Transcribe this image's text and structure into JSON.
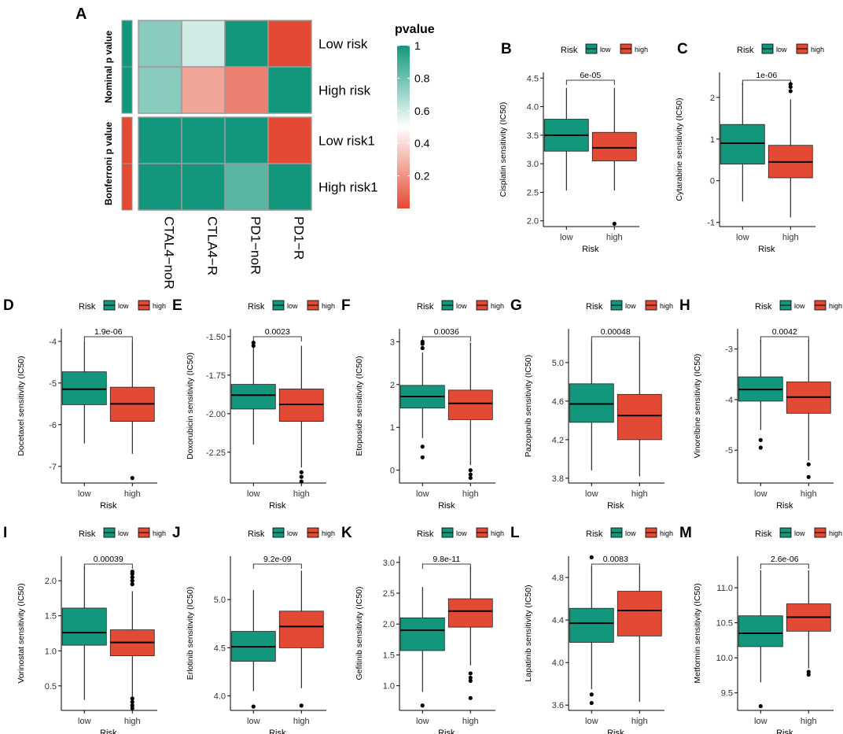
{
  "colors": {
    "low": "#12977c",
    "high": "#e34a33",
    "mid": "#ffffff",
    "grid_border": "#9b9b9b"
  },
  "heatmap": {
    "panel_letter": "A",
    "legend_title": "pvalue",
    "legend_ticks": [
      "1",
      "0.8",
      "0.6",
      "0.4",
      "0.2"
    ],
    "legend_tick_values": [
      1,
      0.8,
      0.6,
      0.4,
      0.2
    ],
    "columns": [
      "CTAL4−noR",
      "CTLA4−R",
      "PD1−noR",
      "PD1−R"
    ],
    "row_groups": [
      {
        "label": "Nominal p value",
        "rows": [
          "Low risk",
          "High risk"
        ]
      },
      {
        "label": "Bonferroni p value",
        "rows": [
          "Low risk1",
          "High risk1"
        ]
      }
    ],
    "values": [
      [
        0.75,
        0.6,
        1.0,
        0.0
      ],
      [
        0.75,
        0.25,
        0.15,
        1.0
      ],
      [
        1.0,
        1.0,
        1.0,
        0.0
      ],
      [
        1.0,
        1.0,
        0.85,
        1.0
      ]
    ]
  },
  "box_common": {
    "legend_title": "Risk",
    "legend_labels": [
      "low",
      "high"
    ],
    "xlabel": "Risk",
    "categories": [
      "low",
      "high"
    ]
  },
  "chart_data": [
    {
      "type": "box",
      "letter": "B",
      "ylabel": "Cisplatin sensitivity (IC50)",
      "pvalue": "6e-05",
      "ylim": [
        1.9,
        4.6
      ],
      "yticks": [
        "2.0",
        "2.5",
        "3.0",
        "3.5",
        "4.0",
        "4.5"
      ],
      "ytick_values": [
        2.0,
        2.5,
        3.0,
        3.5,
        4.0,
        4.5
      ],
      "low": {
        "min": 2.53,
        "q1": 3.22,
        "median": 3.5,
        "q3": 3.78,
        "max": 4.33,
        "outliers": []
      },
      "high": {
        "min": 2.53,
        "q1": 3.05,
        "median": 3.28,
        "q3": 3.55,
        "max": 4.33,
        "outliers": [
          1.95
        ]
      }
    },
    {
      "type": "box",
      "letter": "C",
      "ylabel": "Cytarabine sensitivity (IC50)",
      "pvalue": "1e-06",
      "ylim": [
        -1.1,
        2.6
      ],
      "yticks": [
        "-1",
        "0",
        "1",
        "2"
      ],
      "ytick_values": [
        -1,
        0,
        1,
        2
      ],
      "low": {
        "min": -0.5,
        "q1": 0.4,
        "median": 0.9,
        "q3": 1.35,
        "max": 2.35,
        "outliers": []
      },
      "high": {
        "min": -0.88,
        "q1": 0.07,
        "median": 0.45,
        "q3": 0.85,
        "max": 1.95,
        "outliers": [
          2.15,
          2.25,
          2.32
        ]
      }
    },
    {
      "type": "box",
      "letter": "D",
      "ylabel": "Docetaxel sensitivity (IC50)",
      "pvalue": "1.9e-06",
      "ylim": [
        -7.4,
        -3.7
      ],
      "yticks": [
        "-7",
        "-6",
        "-5",
        "-4"
      ],
      "ytick_values": [
        -7,
        -6,
        -5,
        -4
      ],
      "low": {
        "min": -6.45,
        "q1": -5.52,
        "median": -5.15,
        "q3": -4.73,
        "max": -4.0,
        "outliers": []
      },
      "high": {
        "min": -6.7,
        "q1": -5.92,
        "median": -5.5,
        "q3": -5.1,
        "max": -4.0,
        "outliers": [
          -7.28
        ]
      }
    },
    {
      "type": "box",
      "letter": "E",
      "ylabel": "Doxorubicin sensitivity (IC50)",
      "pvalue": "0.0023",
      "ylim": [
        -2.45,
        -1.45
      ],
      "yticks": [
        "-2.25",
        "-2.00",
        "-1.75",
        "-1.50"
      ],
      "ytick_values": [
        -2.25,
        -2.0,
        -1.75,
        -1.5
      ],
      "low": {
        "min": -2.2,
        "q1": -1.97,
        "median": -1.88,
        "q3": -1.81,
        "max": -1.56,
        "outliers": [
          -1.54,
          -1.56
        ]
      },
      "high": {
        "min": -2.35,
        "q1": -2.05,
        "median": -1.94,
        "q3": -1.84,
        "max": -1.56,
        "outliers": [
          -2.38,
          -2.41,
          -2.44
        ]
      }
    },
    {
      "type": "box",
      "letter": "F",
      "ylabel": "Etoposide sensitivity (IC50)",
      "pvalue": "0.0036",
      "ylim": [
        -0.3,
        3.3
      ],
      "yticks": [
        "0",
        "1",
        "2",
        "3"
      ],
      "ytick_values": [
        0,
        1,
        2,
        3
      ],
      "low": {
        "min": 0.75,
        "q1": 1.45,
        "median": 1.72,
        "q3": 1.98,
        "max": 2.75,
        "outliers": [
          2.85,
          2.95,
          3.0,
          0.55,
          0.3
        ]
      },
      "high": {
        "min": 0.12,
        "q1": 1.18,
        "median": 1.56,
        "q3": 1.87,
        "max": 2.98,
        "outliers": [
          0.0,
          -0.1,
          -0.18
        ]
      }
    },
    {
      "type": "box",
      "letter": "G",
      "ylabel": "Pazopanib sensitivity (IC50)",
      "pvalue": "0.00048",
      "ylim": [
        3.75,
        5.35
      ],
      "yticks": [
        "3.8",
        "4.2",
        "4.6",
        "5.0"
      ],
      "ytick_values": [
        3.8,
        4.2,
        4.6,
        5.0
      ],
      "low": {
        "min": 3.88,
        "q1": 4.38,
        "median": 4.57,
        "q3": 4.78,
        "max": 5.22,
        "outliers": []
      },
      "high": {
        "min": 3.82,
        "q1": 4.2,
        "median": 4.45,
        "q3": 4.67,
        "max": 5.22,
        "outliers": []
      }
    },
    {
      "type": "box",
      "letter": "H",
      "ylabel": "Vinorelbine sensitivity (IC50)",
      "pvalue": "0.0042",
      "ylim": [
        -5.65,
        -2.6
      ],
      "yticks": [
        "-5",
        "-4",
        "-3"
      ],
      "ytick_values": [
        -5,
        -4,
        -3
      ],
      "low": {
        "min": -4.6,
        "q1": -4.03,
        "median": -3.8,
        "q3": -3.55,
        "max": -2.82,
        "outliers": [
          -4.8,
          -4.95
        ]
      },
      "high": {
        "min": -5.2,
        "q1": -4.27,
        "median": -3.95,
        "q3": -3.65,
        "max": -2.82,
        "outliers": [
          -5.28,
          -5.53
        ]
      }
    },
    {
      "type": "box",
      "letter": "I",
      "ylabel": "Vorinostat sensitivity (IC50)",
      "pvalue": "0.00039",
      "ylim": [
        0.15,
        2.35
      ],
      "yticks": [
        "0.5",
        "1.0",
        "1.5",
        "2.0"
      ],
      "ytick_values": [
        0.5,
        1.0,
        1.5,
        2.0
      ],
      "low": {
        "min": 0.3,
        "q1": 1.08,
        "median": 1.26,
        "q3": 1.61,
        "max": 2.2,
        "outliers": []
      },
      "high": {
        "min": 0.35,
        "q1": 0.93,
        "median": 1.12,
        "q3": 1.3,
        "max": 1.85,
        "outliers": [
          1.95,
          2.0,
          2.05,
          2.1,
          2.13,
          0.32,
          0.27,
          0.22,
          0.18
        ]
      }
    },
    {
      "type": "box",
      "letter": "J",
      "ylabel": "Erlotinib sensitivity (IC50)",
      "pvalue": "9.2e-09",
      "ylim": [
        3.85,
        5.45
      ],
      "yticks": [
        "4.0",
        "4.5",
        "5.0"
      ],
      "ytick_values": [
        4.0,
        4.5,
        5.0
      ],
      "low": {
        "min": 4.05,
        "q1": 4.36,
        "median": 4.51,
        "q3": 4.67,
        "max": 5.1,
        "outliers": [
          3.89
        ]
      },
      "high": {
        "min": 4.08,
        "q1": 4.5,
        "median": 4.72,
        "q3": 4.88,
        "max": 5.3,
        "outliers": [
          3.9
        ]
      }
    },
    {
      "type": "box",
      "letter": "K",
      "ylabel": "Gefitinib sensitivity (IC50)",
      "pvalue": "9.8e-11",
      "ylim": [
        0.6,
        3.1
      ],
      "yticks": [
        "1.0",
        "1.5",
        "2.0",
        "2.5",
        "3.0"
      ],
      "ytick_values": [
        1.0,
        1.5,
        2.0,
        2.5,
        3.0
      ],
      "low": {
        "min": 0.9,
        "q1": 1.57,
        "median": 1.9,
        "q3": 2.1,
        "max": 2.6,
        "outliers": [
          0.68
        ]
      },
      "high": {
        "min": 1.33,
        "q1": 1.95,
        "median": 2.21,
        "q3": 2.41,
        "max": 2.92,
        "outliers": [
          1.2,
          1.13,
          1.08,
          0.8
        ]
      }
    },
    {
      "type": "box",
      "letter": "L",
      "ylabel": "Lapatinib sensitivity (IC50)",
      "pvalue": "0.0083",
      "ylim": [
        3.55,
        5.0
      ],
      "yticks": [
        "3.6",
        "4.0",
        "4.4",
        "4.8"
      ],
      "ytick_values": [
        3.6,
        4.0,
        4.4,
        4.8
      ],
      "low": {
        "min": 3.75,
        "q1": 4.19,
        "median": 4.37,
        "q3": 4.51,
        "max": 4.9,
        "outliers": [
          4.99,
          3.7,
          3.62
        ]
      },
      "high": {
        "min": 3.63,
        "q1": 4.25,
        "median": 4.49,
        "q3": 4.67,
        "max": 4.9,
        "outliers": []
      }
    },
    {
      "type": "box",
      "letter": "M",
      "ylabel": "Metformin sensitivity (IC50)",
      "pvalue": "2.6e-06",
      "ylim": [
        9.25,
        11.45
      ],
      "yticks": [
        "9.5",
        "10.0",
        "10.5",
        "11.0"
      ],
      "ytick_values": [
        9.5,
        10.0,
        10.5,
        11.0
      ],
      "low": {
        "min": 9.65,
        "q1": 10.16,
        "median": 10.35,
        "q3": 10.6,
        "max": 11.25,
        "outliers": [
          9.31
        ]
      },
      "high": {
        "min": 9.85,
        "q1": 10.38,
        "median": 10.58,
        "q3": 10.77,
        "max": 11.25,
        "outliers": [
          9.8,
          9.76
        ]
      }
    }
  ]
}
